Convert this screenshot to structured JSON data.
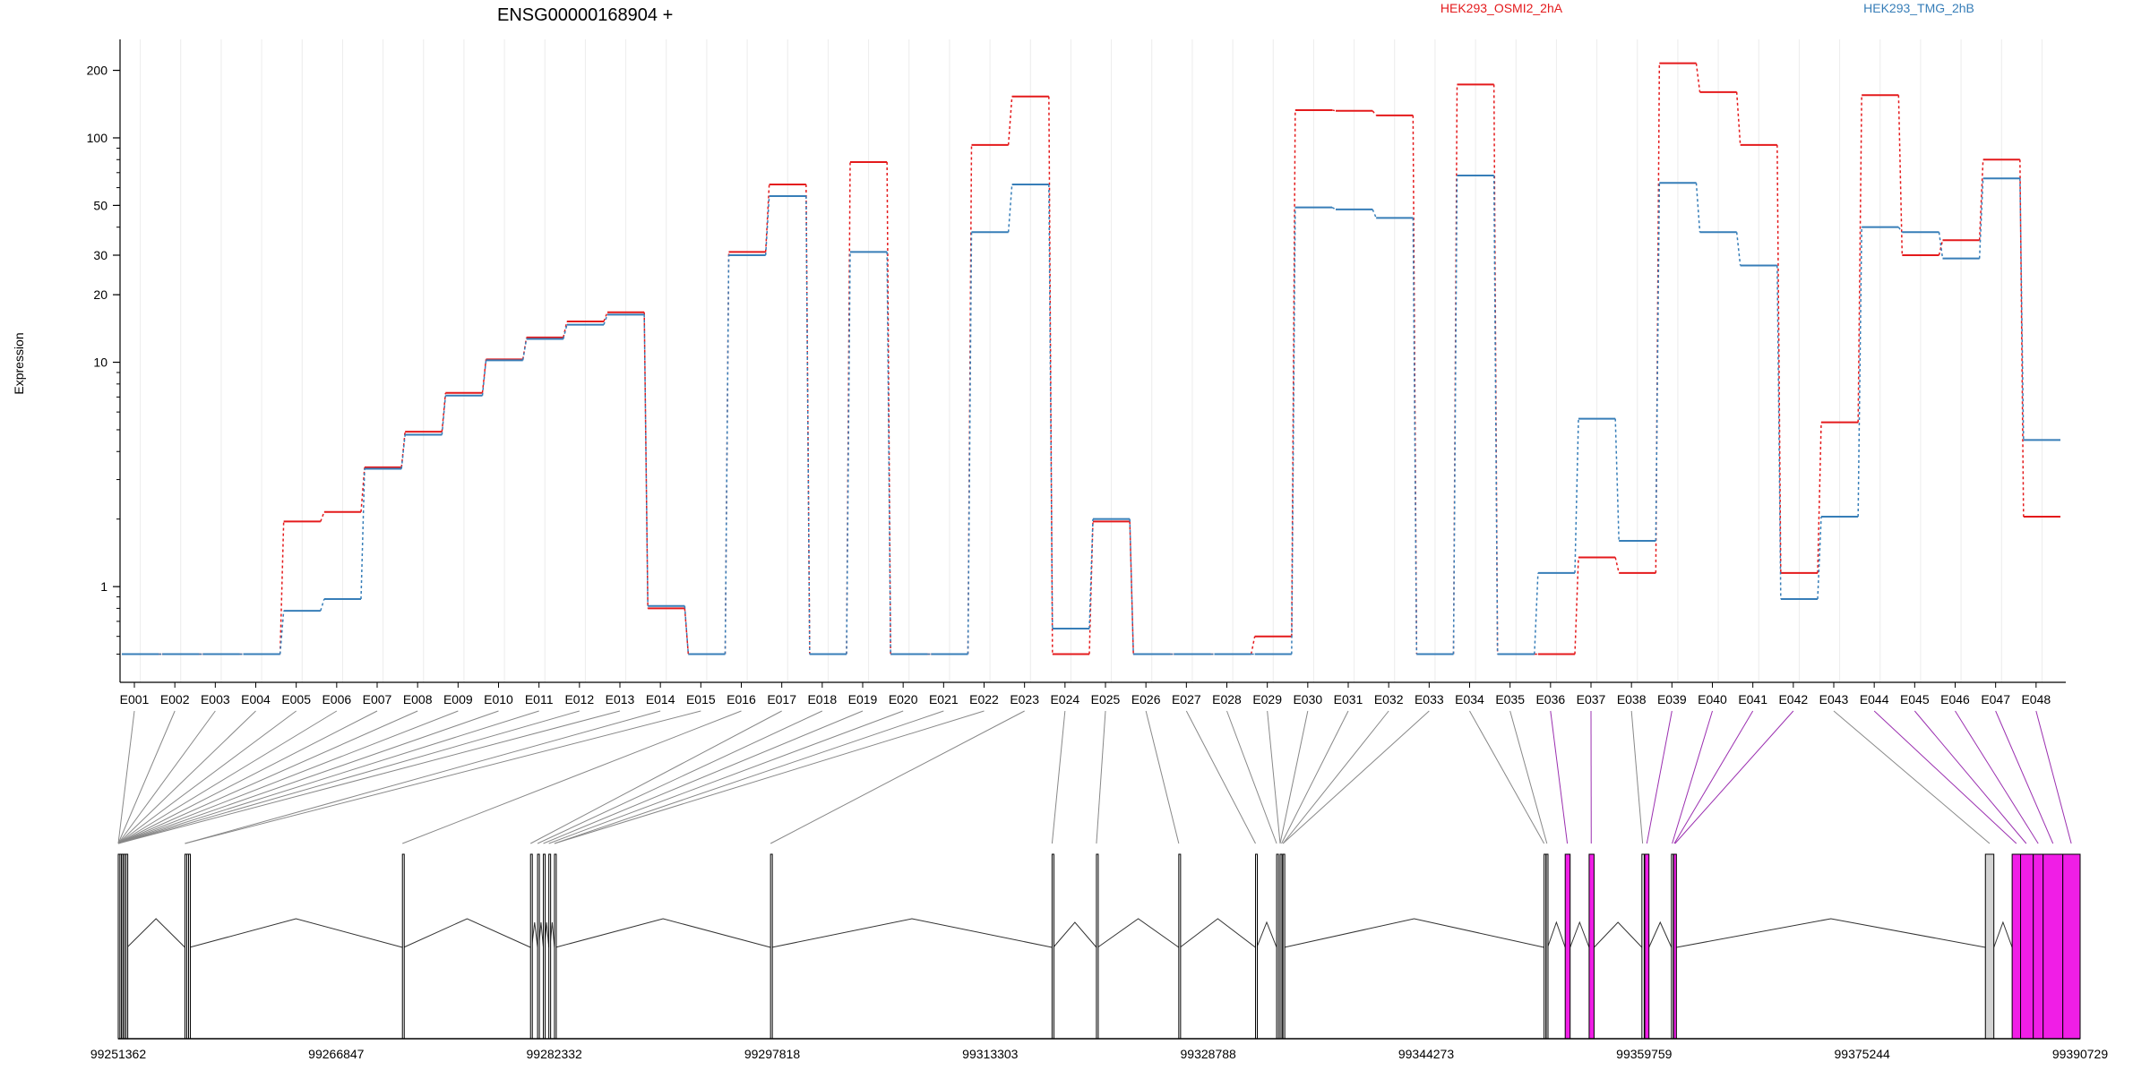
{
  "chart_data": {
    "type": "line",
    "title": "ENSG00000168904 +",
    "ylabel": "Expression",
    "y_scale": "log",
    "ylim": [
      0.45,
      260
    ],
    "y_ticks": [
      "1",
      "10",
      "20",
      "30",
      "50",
      "100",
      "200"
    ],
    "categories": [
      "E001",
      "E002",
      "E003",
      "E004",
      "E005",
      "E006",
      "E007",
      "E008",
      "E009",
      "E010",
      "E011",
      "E012",
      "E013",
      "E014",
      "E015",
      "E016",
      "E017",
      "E018",
      "E019",
      "E020",
      "E021",
      "E022",
      "E023",
      "E024",
      "E025",
      "E026",
      "E027",
      "E028",
      "E029",
      "E030",
      "E031",
      "E032",
      "E033",
      "E034",
      "E035",
      "E036",
      "E037",
      "E038",
      "E039",
      "E040",
      "E041",
      "E042",
      "E043",
      "E044",
      "E045",
      "E046",
      "E047",
      "E048"
    ],
    "series": [
      {
        "name": "HEK293_OSMI2_2hA",
        "color": "#e41a1c",
        "values": [
          0.5,
          0.5,
          0.5,
          0.5,
          1.95,
          2.15,
          3.4,
          4.9,
          7.3,
          10.3,
          12.9,
          15.2,
          16.7,
          0.8,
          0.5,
          31,
          62,
          0.5,
          78,
          0.5,
          0.5,
          93,
          153,
          0.5,
          1.95,
          0.5,
          0.5,
          0.5,
          0.6,
          133,
          132,
          126,
          0.5,
          173,
          0.5,
          0.5,
          1.35,
          1.15,
          215,
          160,
          93,
          1.15,
          5.4,
          155,
          30,
          35,
          80,
          2.05
        ]
      },
      {
        "name": "HEK293_TMG_2hB",
        "color": "#377eb8",
        "values": [
          0.5,
          0.5,
          0.5,
          0.5,
          0.78,
          0.88,
          3.35,
          4.75,
          7.1,
          10.2,
          12.7,
          14.7,
          16.3,
          0.82,
          0.5,
          30,
          55,
          0.5,
          31,
          0.5,
          0.5,
          38,
          62,
          0.65,
          2.0,
          0.5,
          0.5,
          0.5,
          0.5,
          49,
          48,
          44,
          0.5,
          68,
          0.5,
          1.15,
          5.6,
          1.6,
          63,
          38,
          27,
          0.88,
          2.05,
          40,
          38,
          29,
          66,
          4.5
        ]
      }
    ],
    "grid": true,
    "legend": "top",
    "genome_axis": {
      "tick_labels": [
        "99251362",
        "99266847",
        "99282332",
        "99297818",
        "99313303",
        "99328788",
        "99344273",
        "99359759",
        "99375244",
        "99390729"
      ],
      "start": 99251362,
      "end": 99390729,
      "exons": [
        {
          "s": 99251362,
          "e": 99251450
        },
        {
          "s": 99251480,
          "e": 99251560
        },
        {
          "s": 99251590,
          "e": 99251660
        },
        {
          "s": 99251690,
          "e": 99251760
        },
        {
          "s": 99251790,
          "e": 99251880
        },
        {
          "s": 99251910,
          "e": 99251990
        },
        {
          "s": 99256100,
          "e": 99256190
        },
        {
          "s": 99256230,
          "e": 99256320
        },
        {
          "s": 99256360,
          "e": 99256430
        },
        {
          "s": 99271550,
          "e": 99271640
        },
        {
          "s": 99280650,
          "e": 99280730
        },
        {
          "s": 99281150,
          "e": 99281230
        },
        {
          "s": 99281560,
          "e": 99281640
        },
        {
          "s": 99281950,
          "e": 99282030
        },
        {
          "s": 99282350,
          "e": 99282430
        },
        {
          "s": 99297700,
          "e": 99297790
        },
        {
          "s": 99317700,
          "e": 99317790
        },
        {
          "s": 99320850,
          "e": 99320940
        },
        {
          "s": 99326700,
          "e": 99326790
        },
        {
          "s": 99332150,
          "e": 99332240
        },
        {
          "s": 99333650,
          "e": 99333740
        },
        {
          "s": 99333900,
          "e": 99333990
        },
        {
          "s": 99334100,
          "e": 99334190
        },
        {
          "s": 99352650,
          "e": 99352750
        },
        {
          "s": 99352800,
          "e": 99352900
        },
        {
          "s": 99354150,
          "e": 99354500,
          "m": true
        },
        {
          "s": 99355850,
          "e": 99356200,
          "m": true
        },
        {
          "s": 99359600,
          "e": 99359760
        },
        {
          "s": 99359800,
          "e": 99360100,
          "m": true
        },
        {
          "s": 99361700,
          "e": 99361800
        },
        {
          "s": 99361850,
          "e": 99362050,
          "m": true
        },
        {
          "s": 99384000,
          "e": 99384600,
          "g": true
        },
        {
          "s": 99385900,
          "e": 99386500,
          "m": true
        },
        {
          "s": 99386500,
          "e": 99387400,
          "m": true
        },
        {
          "s": 99387400,
          "e": 99388100,
          "m": true
        },
        {
          "s": 99388100,
          "e": 99389500,
          "m": true
        },
        {
          "s": 99389500,
          "e": 99390729,
          "m": true
        }
      ],
      "connectors": [
        {
          "g": 99251362
        },
        {
          "g": 99251362
        },
        {
          "g": 99251362
        },
        {
          "g": 99251362
        },
        {
          "g": 99251362
        },
        {
          "g": 99251362
        },
        {
          "g": 99251362
        },
        {
          "g": 99251362
        },
        {
          "g": 99251362
        },
        {
          "g": 99251362
        },
        {
          "g": 99251362
        },
        {
          "g": 99251362
        },
        {
          "g": 99251362
        },
        {
          "g": 99256100
        },
        {
          "g": 99256100
        },
        {
          "g": 99271550
        },
        {
          "g": 99280650
        },
        {
          "g": 99281150
        },
        {
          "g": 99281560
        },
        {
          "g": 99281950
        },
        {
          "g": 99282350
        },
        {
          "g": 99282350
        },
        {
          "g": 99297700
        },
        {
          "g": 99317700
        },
        {
          "g": 99320850
        },
        {
          "g": 99326700
        },
        {
          "g": 99332150
        },
        {
          "g": 99333650
        },
        {
          "g": 99333900
        },
        {
          "g": 99333900
        },
        {
          "g": 99334000
        },
        {
          "g": 99334100
        },
        {
          "g": 99334100
        },
        {
          "g": 99352650
        },
        {
          "g": 99352850
        },
        {
          "g": 99354300,
          "m": true
        },
        {
          "g": 99356000,
          "m": true
        },
        {
          "g": 99359650
        },
        {
          "g": 99359950,
          "m": true
        },
        {
          "g": 99361750,
          "m": true
        },
        {
          "g": 99361900,
          "m": true
        },
        {
          "g": 99361950,
          "m": true
        },
        {
          "g": 99384300
        },
        {
          "g": 99386200,
          "m": true
        },
        {
          "g": 99386900,
          "m": true
        },
        {
          "g": 99387750,
          "m": true
        },
        {
          "g": 99388800,
          "m": true
        },
        {
          "g": 99390100,
          "m": true
        }
      ]
    }
  }
}
